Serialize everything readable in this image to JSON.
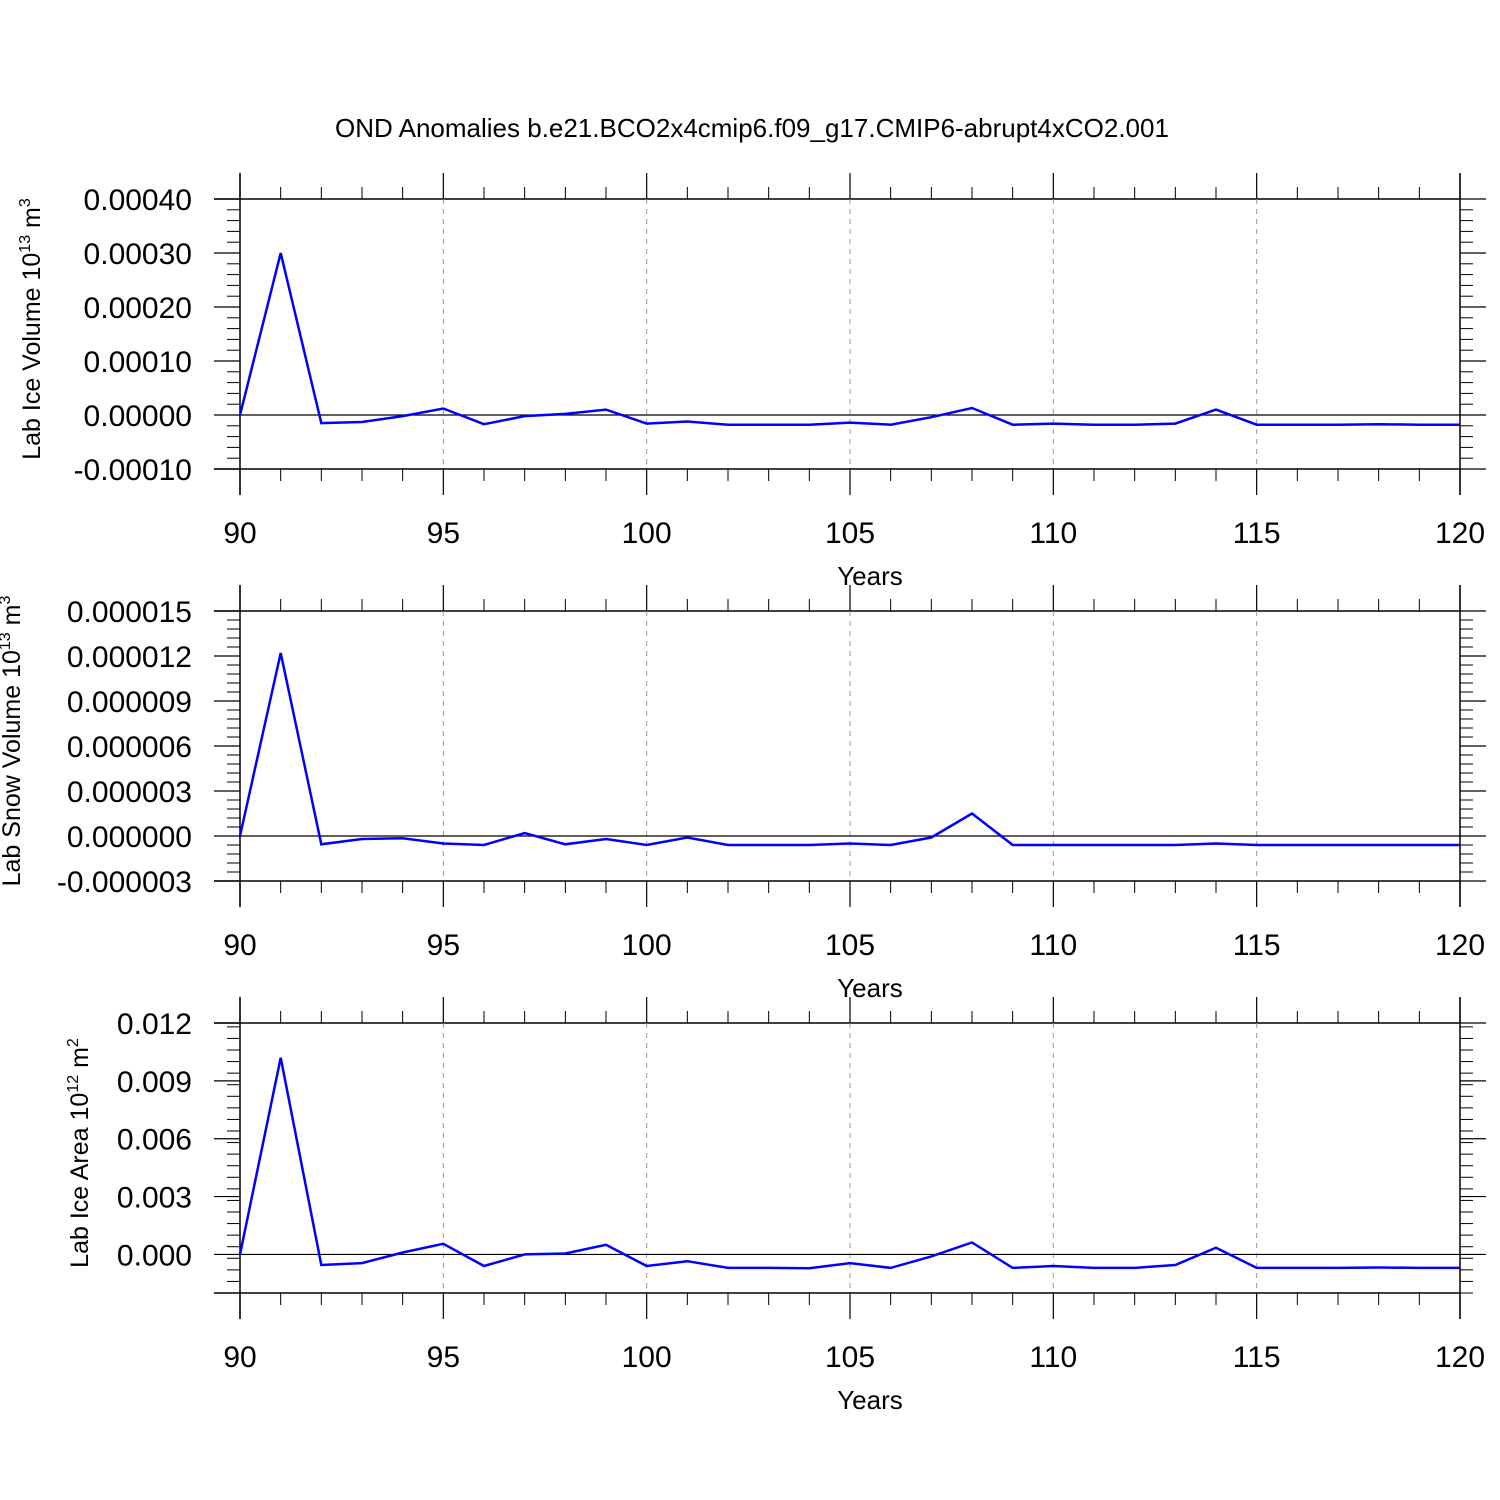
{
  "title": "OND Anomalies b.e21.BCO2x4cmip6.f09_g17.CMIP6-abrupt4xCO2.001",
  "colors": {
    "series": "#0000ff",
    "axis": "#000000",
    "grid": "#999999",
    "background": "#ffffff"
  },
  "chart_data": [
    {
      "type": "line",
      "ylabel": {
        "main": "Lab Ice Volume 10",
        "sup": "13",
        "unit": " m",
        "unit_sup": "3"
      },
      "xlabel": "Years",
      "xlim": [
        90,
        120
      ],
      "ylim": [
        -0.0001,
        0.0004
      ],
      "x_ticks": [
        90,
        95,
        100,
        105,
        110,
        115,
        120
      ],
      "x_tick_labels": [
        "90",
        "95",
        "100",
        "105",
        "110",
        "115",
        "120"
      ],
      "y_ticks": [
        -0.0001,
        0,
        0.0001,
        0.0002,
        0.0003,
        0.0004
      ],
      "y_tick_labels": [
        "-0.00010",
        "0.00000",
        "0.00010",
        "0.00020",
        "0.00030",
        "0.00040"
      ],
      "grid": "vertical dashed at major x ticks",
      "x": [
        90,
        91,
        92,
        93,
        94,
        95,
        96,
        97,
        98,
        99,
        100,
        101,
        102,
        103,
        104,
        105,
        106,
        107,
        108,
        109,
        110,
        111,
        112,
        113,
        114,
        115,
        116,
        117,
        118,
        119,
        120
      ],
      "values": [
        0.0,
        0.0003,
        -1.5e-05,
        -1.3e-05,
        -2e-06,
        1.2e-05,
        -1.7e-05,
        -2e-06,
        2e-06,
        1e-05,
        -1.6e-05,
        -1.2e-05,
        -1.8e-05,
        -1.8e-05,
        -1.8e-05,
        -1.4e-05,
        -1.8e-05,
        -4e-06,
        1.3e-05,
        -1.8e-05,
        -1.6e-05,
        -1.8e-05,
        -1.8e-05,
        -1.6e-05,
        1e-05,
        -1.8e-05,
        -1.8e-05,
        -1.8e-05,
        -1.7e-05,
        -1.8e-05,
        -1.8e-05
      ]
    },
    {
      "type": "line",
      "ylabel": {
        "main": "Lab Snow Volume 10",
        "sup": "13",
        "unit": " m",
        "unit_sup": "3"
      },
      "xlabel": "Years",
      "xlim": [
        90,
        120
      ],
      "ylim": [
        -3e-06,
        1.5e-05
      ],
      "x_ticks": [
        90,
        95,
        100,
        105,
        110,
        115,
        120
      ],
      "x_tick_labels": [
        "90",
        "95",
        "100",
        "105",
        "110",
        "115",
        "120"
      ],
      "y_ticks": [
        -3e-06,
        0,
        3e-06,
        6e-06,
        9e-06,
        1.2e-05,
        1.5e-05
      ],
      "y_tick_labels": [
        "-0.000003",
        "0.000000",
        "0.000003",
        "0.000006",
        "0.000009",
        "0.000012",
        "0.000015"
      ],
      "grid": "vertical dashed at major x ticks",
      "x": [
        90,
        91,
        92,
        93,
        94,
        95,
        96,
        97,
        98,
        99,
        100,
        101,
        102,
        103,
        104,
        105,
        106,
        107,
        108,
        109,
        110,
        111,
        112,
        113,
        114,
        115,
        116,
        117,
        118,
        119,
        120
      ],
      "values": [
        0.0,
        1.22e-05,
        -5.5e-07,
        -2e-07,
        -1.5e-07,
        -5e-07,
        -6e-07,
        2e-07,
        -5.5e-07,
        -2e-07,
        -6e-07,
        -1e-07,
        -6e-07,
        -6e-07,
        -6e-07,
        -5e-07,
        -6e-07,
        -1e-07,
        1.5e-06,
        -6e-07,
        -6e-07,
        -6e-07,
        -6e-07,
        -6e-07,
        -5e-07,
        -6e-07,
        -6e-07,
        -6e-07,
        -6e-07,
        -6e-07,
        -6e-07
      ]
    },
    {
      "type": "line",
      "ylabel": {
        "main": "Lab Ice Area 10",
        "sup": "12",
        "unit": " m",
        "unit_sup": "2"
      },
      "xlabel": "Years",
      "xlim": [
        90,
        120
      ],
      "ylim": [
        -0.002,
        0.012
      ],
      "x_ticks": [
        90,
        95,
        100,
        105,
        110,
        115,
        120
      ],
      "x_tick_labels": [
        "90",
        "95",
        "100",
        "105",
        "110",
        "115",
        "120"
      ],
      "y_ticks": [
        0,
        0.003,
        0.006,
        0.009,
        0.012
      ],
      "y_tick_labels": [
        "0.000",
        "0.003",
        "0.006",
        "0.009",
        "0.012"
      ],
      "grid": "vertical dashed at major x ticks",
      "x": [
        90,
        91,
        92,
        93,
        94,
        95,
        96,
        97,
        98,
        99,
        100,
        101,
        102,
        103,
        104,
        105,
        106,
        107,
        108,
        109,
        110,
        111,
        112,
        113,
        114,
        115,
        116,
        117,
        118,
        119,
        120
      ],
      "values": [
        0.0,
        0.0102,
        -0.00055,
        -0.00045,
        0.0001,
        0.00055,
        -0.0006,
        0.0,
        5e-05,
        0.0005,
        -0.0006,
        -0.00035,
        -0.0007,
        -0.0007,
        -0.00072,
        -0.00045,
        -0.0007,
        -0.0001,
        0.00062,
        -0.0007,
        -0.0006,
        -0.0007,
        -0.0007,
        -0.00055,
        0.00035,
        -0.0007,
        -0.0007,
        -0.0007,
        -0.00068,
        -0.0007,
        -0.0007
      ]
    }
  ]
}
